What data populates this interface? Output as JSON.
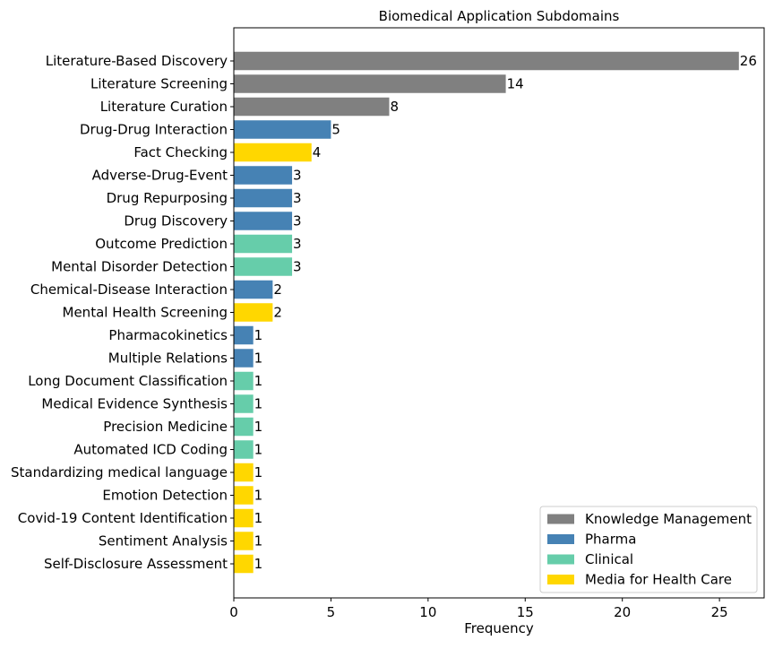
{
  "chart_data": {
    "type": "bar",
    "orientation": "horizontal",
    "title": "Biomedical Application Subdomains",
    "xlabel": "Frequency",
    "ylabel": "",
    "xlim": [
      0,
      27.3
    ],
    "xticks": [
      0,
      5,
      10,
      15,
      20,
      25
    ],
    "grid": false,
    "legend_position": "bottom-right",
    "groups": [
      {
        "name": "Knowledge Management",
        "color": "#808080"
      },
      {
        "name": "Pharma",
        "color": "#4682b4"
      },
      {
        "name": "Clinical",
        "color": "#66cdaa"
      },
      {
        "name": "Media for Health Care",
        "color": "#ffd700"
      }
    ],
    "bars": [
      {
        "label": "Literature-Based Discovery",
        "value": 26,
        "group": "Knowledge Management"
      },
      {
        "label": "Literature Screening",
        "value": 14,
        "group": "Knowledge Management"
      },
      {
        "label": "Literature Curation",
        "value": 8,
        "group": "Knowledge Management"
      },
      {
        "label": "Drug-Drug Interaction",
        "value": 5,
        "group": "Pharma"
      },
      {
        "label": "Fact Checking",
        "value": 4,
        "group": "Media for Health Care"
      },
      {
        "label": "Adverse-Drug-Event",
        "value": 3,
        "group": "Pharma"
      },
      {
        "label": "Drug Repurposing",
        "value": 3,
        "group": "Pharma"
      },
      {
        "label": "Drug Discovery",
        "value": 3,
        "group": "Pharma"
      },
      {
        "label": "Outcome Prediction",
        "value": 3,
        "group": "Clinical"
      },
      {
        "label": "Mental Disorder Detection",
        "value": 3,
        "group": "Clinical"
      },
      {
        "label": "Chemical-Disease Interaction",
        "value": 2,
        "group": "Pharma"
      },
      {
        "label": "Mental Health Screening",
        "value": 2,
        "group": "Media for Health Care"
      },
      {
        "label": "Pharmacokinetics",
        "value": 1,
        "group": "Pharma"
      },
      {
        "label": "Multiple Relations",
        "value": 1,
        "group": "Pharma"
      },
      {
        "label": "Long Document Classification",
        "value": 1,
        "group": "Clinical"
      },
      {
        "label": "Medical Evidence Synthesis",
        "value": 1,
        "group": "Clinical"
      },
      {
        "label": "Precision Medicine",
        "value": 1,
        "group": "Clinical"
      },
      {
        "label": "Automated ICD Coding",
        "value": 1,
        "group": "Clinical"
      },
      {
        "label": "Standardizing medical language",
        "value": 1,
        "group": "Media for Health Care"
      },
      {
        "label": "Emotion Detection",
        "value": 1,
        "group": "Media for Health Care"
      },
      {
        "label": "Covid-19 Content Identification",
        "value": 1,
        "group": "Media for Health Care"
      },
      {
        "label": "Sentiment Analysis",
        "value": 1,
        "group": "Media for Health Care"
      },
      {
        "label": "Self-Disclosure Assessment",
        "value": 1,
        "group": "Media for Health Care"
      }
    ]
  }
}
